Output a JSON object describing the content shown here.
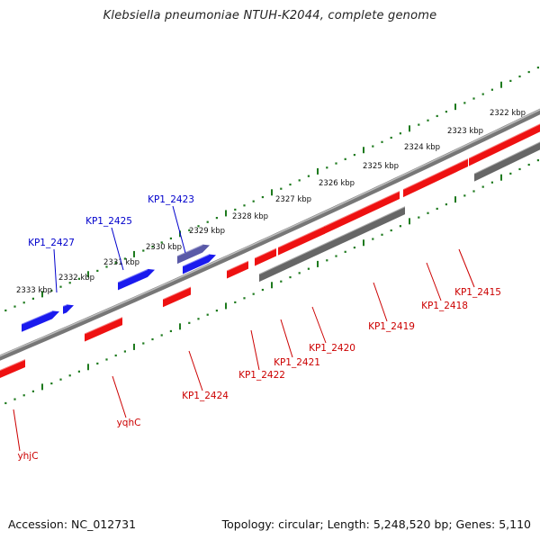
{
  "title": "Klebsiella pneumoniae NTUH-K2044, complete genome",
  "footer": {
    "accession": "Accession: NC_012731",
    "topology": "Topology: circular; Length: 5,248,520 bp; Genes: 5,110"
  },
  "colors": {
    "forward_gene": "#1a1aee",
    "reverse_gene": "#ee1111",
    "other_feature": "#666666",
    "backbone": "#777777",
    "tick": "#1e7a1e",
    "forward_label": "#0000cc",
    "reverse_label": "#cc0000"
  },
  "scale_labels": [
    "2333 kbp",
    "2332 kbp",
    "2331 kbp",
    "2330 kbp",
    "2329 kbp",
    "2328 kbp",
    "2327 kbp",
    "2326 kbp",
    "2325 kbp",
    "2324 kbp",
    "2323 kbp",
    "2322 kbp"
  ],
  "forward_labels": [
    "KP1_2427",
    "KP1_2425",
    "KP1_2423"
  ],
  "reverse_labels": [
    "yhjC",
    "yqhC",
    "KP1_2424",
    "KP1_2422",
    "KP1_2421",
    "KP1_2420",
    "KP1_2419",
    "KP1_2418",
    "KP1_2415"
  ]
}
